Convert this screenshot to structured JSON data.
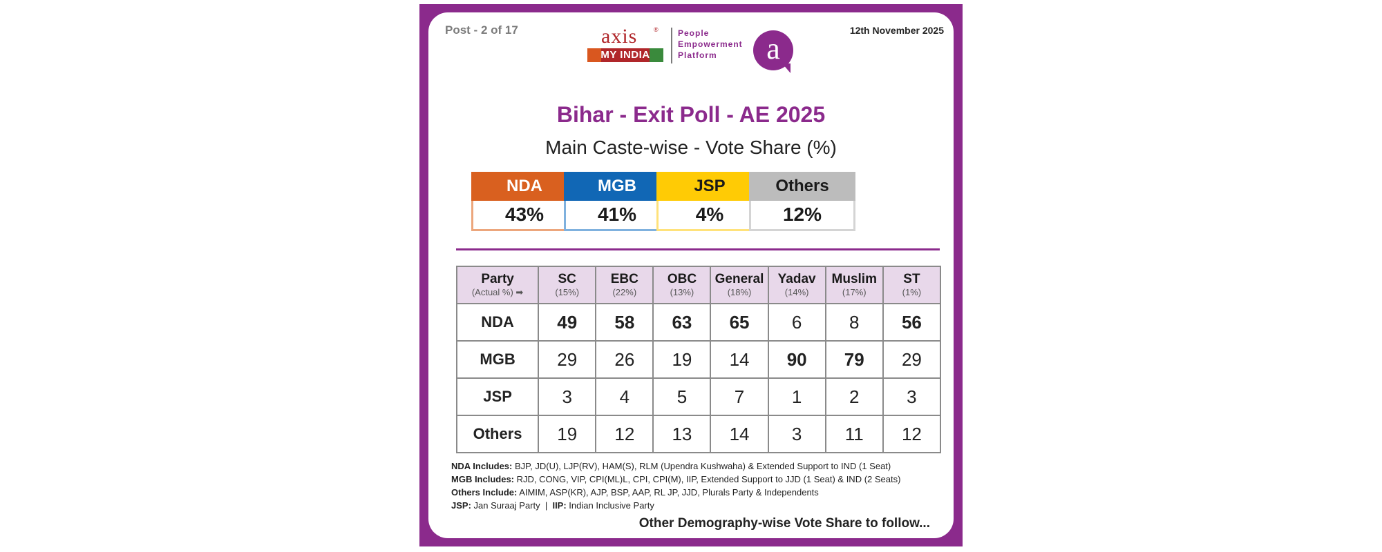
{
  "header": {
    "post": "Post - 2 of 17",
    "date": "12th November 2025",
    "logo": {
      "axis": "axis",
      "reg": "®",
      "myindia": "MY INDIA",
      "tagline": [
        "People",
        "Empowerment",
        "Platform"
      ],
      "mark": "a"
    }
  },
  "title": "Bihar - Exit Poll - AE 2025",
  "subtitle": "Main Caste-wise - Vote Share (%)",
  "tiles": [
    {
      "name": "NDA",
      "value": "43%",
      "head_color": "#d9601f",
      "head_text": "#ffffff",
      "border": "#eca67c"
    },
    {
      "name": "MGB",
      "value": "41%",
      "head_color": "#1167b5",
      "head_text": "#ffffff",
      "border": "#7fb1de"
    },
    {
      "name": "JSP",
      "value": "4%",
      "head_color": "#ffcb05",
      "head_text": "#1a1a1a",
      "border": "#ffe27a"
    },
    {
      "name": "Others",
      "value": "12%",
      "head_color": "#bcbcbc",
      "head_text": "#1a1a1a",
      "border": "#d4d4d4"
    }
  ],
  "table": {
    "corner": {
      "label": "Party",
      "sub": "(Actual %) ➡"
    },
    "columns": [
      {
        "name": "SC",
        "actual": "(15%)"
      },
      {
        "name": "EBC",
        "actual": "(22%)"
      },
      {
        "name": "OBC",
        "actual": "(13%)"
      },
      {
        "name": "General",
        "actual": "(18%)"
      },
      {
        "name": "Yadav",
        "actual": "(14%)"
      },
      {
        "name": "Muslim",
        "actual": "(17%)"
      },
      {
        "name": "ST",
        "actual": "(1%)"
      }
    ],
    "rows": [
      {
        "party": "NDA",
        "values": [
          "49",
          "58",
          "63",
          "65",
          "6",
          "8",
          "56"
        ],
        "bold": [
          true,
          true,
          true,
          true,
          false,
          false,
          true
        ]
      },
      {
        "party": "MGB",
        "values": [
          "29",
          "26",
          "19",
          "14",
          "90",
          "79",
          "29"
        ],
        "bold": [
          false,
          false,
          false,
          false,
          true,
          true,
          false
        ]
      },
      {
        "party": "JSP",
        "values": [
          "3",
          "4",
          "5",
          "7",
          "1",
          "2",
          "3"
        ],
        "bold": [
          false,
          false,
          false,
          false,
          false,
          false,
          false
        ]
      },
      {
        "party": "Others",
        "values": [
          "19",
          "12",
          "13",
          "14",
          "3",
          "11",
          "12"
        ],
        "bold": [
          false,
          false,
          false,
          false,
          false,
          false,
          false
        ]
      }
    ]
  },
  "notes": {
    "nda_label": "NDA Includes:",
    "nda_text": " BJP, JD(U), LJP(RV), HAM(S), RLM (Upendra Kushwaha) & Extended Support to IND (1 Seat)",
    "mgb_label": "MGB Includes:",
    "mgb_text": " RJD, CONG, VIP, CPI(ML)L, CPI, CPI(M), IIP, Extended Support to JJD (1 Seat) & IND (2 Seats)",
    "others_label": "Others Include:",
    "others_text": " AIMIM, ASP(KR), AJP, BSP, AAP, RL JP, JJD, Plurals Party & Independents",
    "jsp_label": "JSP:",
    "jsp_text": " Jan Suraaj Party  |  ",
    "iip_label": "IIP:",
    "iip_text": " Indian Inclusive Party"
  },
  "footer": "Other Demography-wise Vote Share to follow..."
}
